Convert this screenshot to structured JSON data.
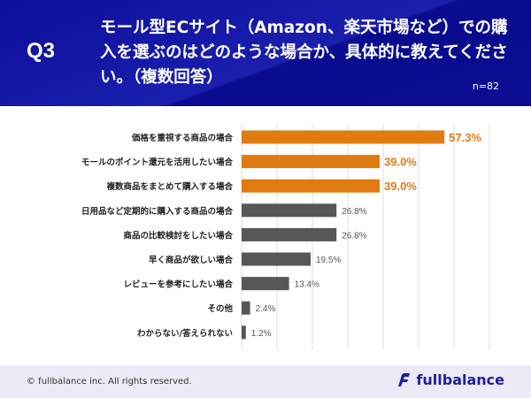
{
  "header": {
    "question": "Q3",
    "title": "モール型ECサイト（Amazon、楽天市場など）での購入を選ぶのはどのような場合か、具体的に教えてください。（複数回答）",
    "n": "n=82"
  },
  "chart_data": {
    "type": "bar",
    "orientation": "horizontal",
    "xlim": [
      0,
      70
    ],
    "grid": true,
    "categories": [
      "価格を重視する商品の場合",
      "モールのポイント還元を活用したい場合",
      "複数商品をまとめて購入する場合",
      "日用品など定期的に購入する商品の場合",
      "商品の比較検討をしたい場合",
      "早く商品が欲しい場合",
      "レビューを参考にしたい場合",
      "その他",
      "わからない/答えられない"
    ],
    "values": [
      57.3,
      39.0,
      39.0,
      26.8,
      26.8,
      19.5,
      13.4,
      2.4,
      1.2
    ],
    "labels": [
      "57.3%",
      "39.0%",
      "39.0%",
      "26.8%",
      "26.8%",
      "19.5%",
      "13.4%",
      "2.4%",
      "1.2%"
    ],
    "highlight_count": 3,
    "colors": {
      "highlight": "#e07b12",
      "normal": "#575757",
      "grid": "#dddddd"
    }
  },
  "footer": {
    "copyright": "© fullbalance inc. All rights reserved.",
    "brand": "fullbalance"
  }
}
